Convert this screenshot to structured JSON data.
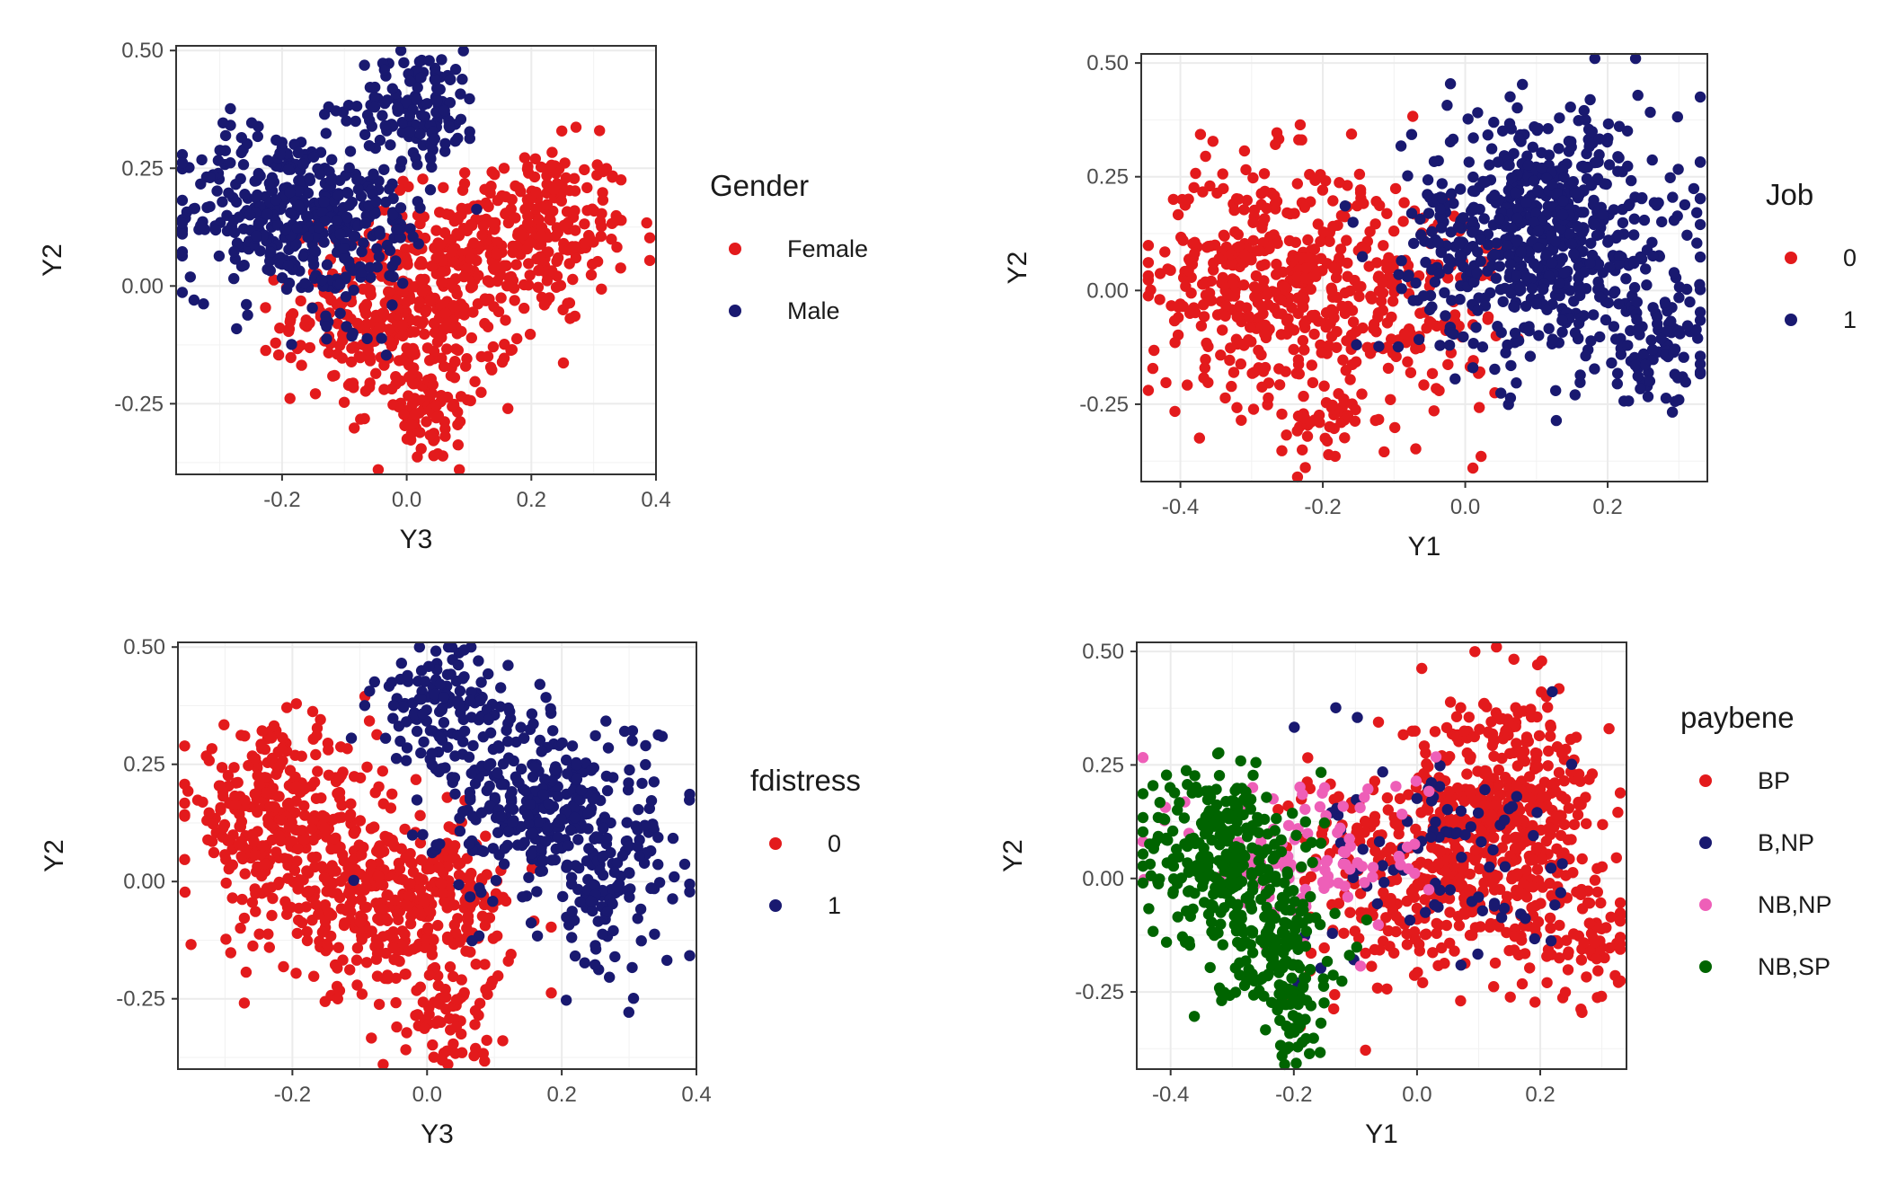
{
  "chart_data": [
    {
      "type": "scatter",
      "xlabel": "Y3",
      "ylabel": "Y2",
      "xlim": [
        -0.37,
        0.4
      ],
      "ylim": [
        -0.4,
        0.51
      ],
      "x_ticks": [
        -0.2,
        0.0,
        0.2,
        0.4
      ],
      "x_tick_labels": [
        "-0.2",
        "0.0",
        "0.2",
        "0.4"
      ],
      "y_ticks": [
        -0.25,
        0.0,
        0.25,
        0.5
      ],
      "y_tick_labels": [
        "-0.25",
        "0.00",
        "0.25",
        "0.50"
      ],
      "grid": true,
      "legend_title": "Gender",
      "legend_position": "right",
      "series": [
        {
          "name": "Female",
          "color": "#e31a1c",
          "clusters": [
            {
              "cx": 0.2,
              "cy": 0.12,
              "sx": 0.08,
              "sy": 0.09,
              "n": 260
            },
            {
              "cx": 0.0,
              "cy": -0.05,
              "sx": 0.09,
              "sy": 0.1,
              "n": 420
            },
            {
              "cx": 0.03,
              "cy": -0.28,
              "sx": 0.04,
              "sy": 0.05,
              "n": 60
            }
          ]
        },
        {
          "name": "Male",
          "color": "#191970",
          "clusters": [
            {
              "cx": -0.2,
              "cy": 0.16,
              "sx": 0.08,
              "sy": 0.09,
              "n": 320
            },
            {
              "cx": 0.02,
              "cy": 0.38,
              "sx": 0.05,
              "sy": 0.06,
              "n": 130
            },
            {
              "cx": -0.08,
              "cy": 0.12,
              "sx": 0.06,
              "sy": 0.1,
              "n": 120
            }
          ]
        }
      ]
    },
    {
      "type": "scatter",
      "xlabel": "Y1",
      "ylabel": "Y2",
      "xlim": [
        -0.455,
        0.34
      ],
      "ylim": [
        -0.42,
        0.52
      ],
      "x_ticks": [
        -0.4,
        -0.2,
        0.0,
        0.2
      ],
      "x_tick_labels": [
        "-0.4",
        "-0.2",
        "0.0",
        "0.2"
      ],
      "y_ticks": [
        -0.25,
        0.0,
        0.25,
        0.5
      ],
      "y_tick_labels": [
        "-0.25",
        "0.00",
        "0.25",
        "0.50"
      ],
      "grid": true,
      "legend_title": "Job",
      "legend_position": "right",
      "series": [
        {
          "name": "0",
          "color": "#e31a1c",
          "clusters": [
            {
              "cx": -0.28,
              "cy": 0.02,
              "sx": 0.08,
              "sy": 0.13,
              "n": 420
            },
            {
              "cx": -0.08,
              "cy": -0.02,
              "sx": 0.07,
              "sy": 0.14,
              "n": 160
            },
            {
              "cx": -0.2,
              "cy": -0.3,
              "sx": 0.03,
              "sy": 0.05,
              "n": 40
            }
          ]
        },
        {
          "name": "1",
          "color": "#191970",
          "clusters": [
            {
              "cx": 0.12,
              "cy": 0.12,
              "sx": 0.09,
              "sy": 0.14,
              "n": 620
            },
            {
              "cx": 0.27,
              "cy": -0.12,
              "sx": 0.04,
              "sy": 0.06,
              "n": 80
            },
            {
              "cx": -0.04,
              "cy": 0.1,
              "sx": 0.05,
              "sy": 0.12,
              "n": 50
            }
          ]
        }
      ]
    },
    {
      "type": "scatter",
      "xlabel": "Y3",
      "ylabel": "Y2",
      "xlim": [
        -0.37,
        0.4
      ],
      "ylim": [
        -0.4,
        0.51
      ],
      "x_ticks": [
        -0.2,
        0.0,
        0.2,
        0.4
      ],
      "x_tick_labels": [
        "-0.2",
        "0.0",
        "0.2",
        "0.4"
      ],
      "y_ticks": [
        -0.25,
        0.0,
        0.25,
        0.5
      ],
      "y_tick_labels": [
        "-0.25",
        "0.00",
        "0.25",
        "0.50"
      ],
      "grid": true,
      "legend_title": "fdistress",
      "legend_position": "right",
      "series": [
        {
          "name": "0",
          "color": "#e31a1c",
          "clusters": [
            {
              "cx": -0.22,
              "cy": 0.14,
              "sx": 0.07,
              "sy": 0.09,
              "n": 300
            },
            {
              "cx": -0.05,
              "cy": -0.05,
              "sx": 0.09,
              "sy": 0.09,
              "n": 400
            },
            {
              "cx": 0.03,
              "cy": -0.28,
              "sx": 0.04,
              "sy": 0.05,
              "n": 60
            }
          ]
        },
        {
          "name": "1",
          "color": "#191970",
          "clusters": [
            {
              "cx": 0.18,
              "cy": 0.15,
              "sx": 0.08,
              "sy": 0.1,
              "n": 340
            },
            {
              "cx": 0.02,
              "cy": 0.38,
              "sx": 0.05,
              "sy": 0.06,
              "n": 120
            },
            {
              "cx": 0.27,
              "cy": -0.05,
              "sx": 0.05,
              "sy": 0.08,
              "n": 80
            }
          ]
        }
      ]
    },
    {
      "type": "scatter",
      "xlabel": "Y1",
      "ylabel": "Y2",
      "xlim": [
        -0.455,
        0.34
      ],
      "ylim": [
        -0.42,
        0.52
      ],
      "x_ticks": [
        -0.4,
        -0.2,
        0.0,
        0.2
      ],
      "x_tick_labels": [
        "-0.4",
        "-0.2",
        "0.0",
        "0.2"
      ],
      "y_ticks": [
        -0.25,
        0.0,
        0.25,
        0.5
      ],
      "y_tick_labels": [
        "-0.25",
        "0.00",
        "0.25",
        "0.50"
      ],
      "grid": true,
      "legend_title": "paybene",
      "legend_position": "right",
      "series": [
        {
          "name": "BP",
          "color": "#e31a1c",
          "clusters": [
            {
              "cx": 0.14,
              "cy": 0.12,
              "sx": 0.08,
              "sy": 0.14,
              "n": 520
            },
            {
              "cx": -0.05,
              "cy": 0.0,
              "sx": 0.08,
              "sy": 0.14,
              "n": 180
            },
            {
              "cx": 0.27,
              "cy": -0.12,
              "sx": 0.04,
              "sy": 0.06,
              "n": 60
            }
          ]
        },
        {
          "name": "B,NP",
          "color": "#191970",
          "clusters": [
            {
              "cx": 0.05,
              "cy": 0.05,
              "sx": 0.1,
              "sy": 0.14,
              "n": 90
            }
          ]
        },
        {
          "name": "NB,NP",
          "color": "#ee5fb8",
          "clusters": [
            {
              "cx": -0.17,
              "cy": 0.05,
              "sx": 0.1,
              "sy": 0.1,
              "n": 110
            }
          ]
        },
        {
          "name": "NB,SP",
          "color": "#006400",
          "clusters": [
            {
              "cx": -0.32,
              "cy": 0.05,
              "sx": 0.06,
              "sy": 0.1,
              "n": 280
            },
            {
              "cx": -0.23,
              "cy": -0.15,
              "sx": 0.05,
              "sy": 0.08,
              "n": 140
            },
            {
              "cx": -0.2,
              "cy": -0.33,
              "sx": 0.02,
              "sy": 0.04,
              "n": 30
            }
          ]
        }
      ]
    }
  ]
}
